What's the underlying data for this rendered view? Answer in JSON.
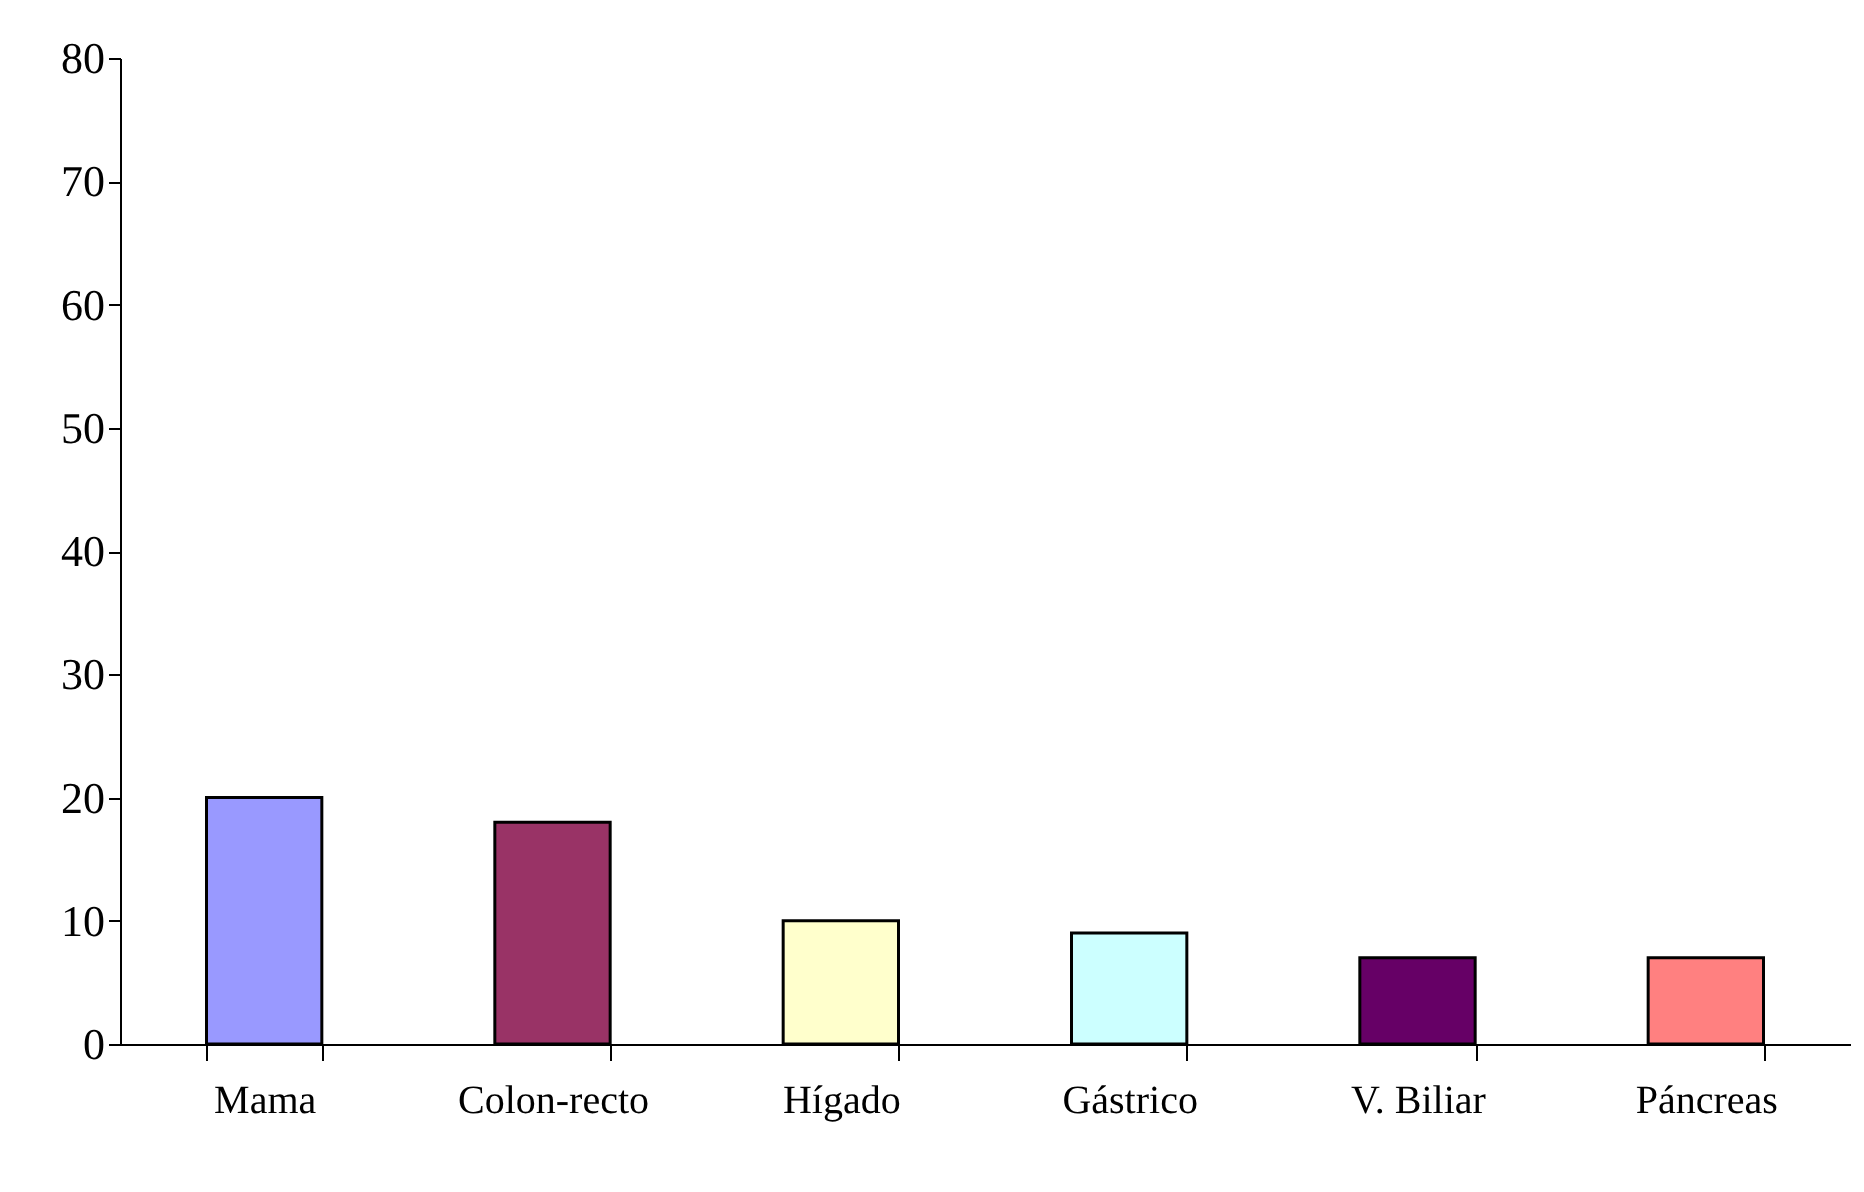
{
  "chart_data": {
    "type": "bar",
    "categories": [
      "Mama",
      "Colon-recto",
      "Hígado",
      "Gástrico",
      "V. Biliar",
      "Páncreas"
    ],
    "values": [
      20,
      18,
      10,
      9,
      7,
      7
    ],
    "colors": [
      "#9999ff",
      "#993366",
      "#ffffcc",
      "#ccffff",
      "#660066",
      "#ff8080"
    ],
    "ylim": [
      0,
      80
    ],
    "yticks": [
      0,
      10,
      20,
      30,
      40,
      50,
      60,
      70,
      80
    ],
    "grid": false
  }
}
